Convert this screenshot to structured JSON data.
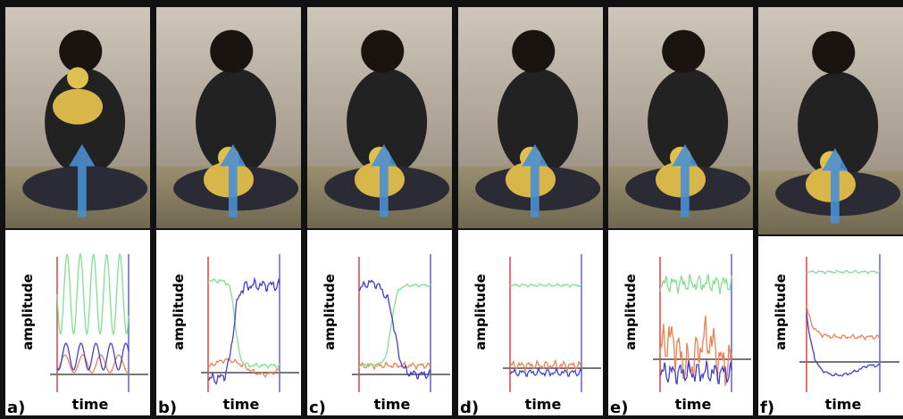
{
  "panels": [
    {
      "label": "a)",
      "y_label": "amplitude",
      "x_label": "time"
    },
    {
      "label": "b)",
      "y_label": "amplitude",
      "x_label": "time"
    },
    {
      "label": "c)",
      "y_label": "amplitude",
      "x_label": "time"
    },
    {
      "label": "d)",
      "y_label": "amplitude",
      "x_label": "time"
    },
    {
      "label": "e)",
      "y_label": "amplitude",
      "x_label": "time"
    },
    {
      "label": "f)",
      "y_label": "amplitude",
      "x_label": "time"
    }
  ]
}
